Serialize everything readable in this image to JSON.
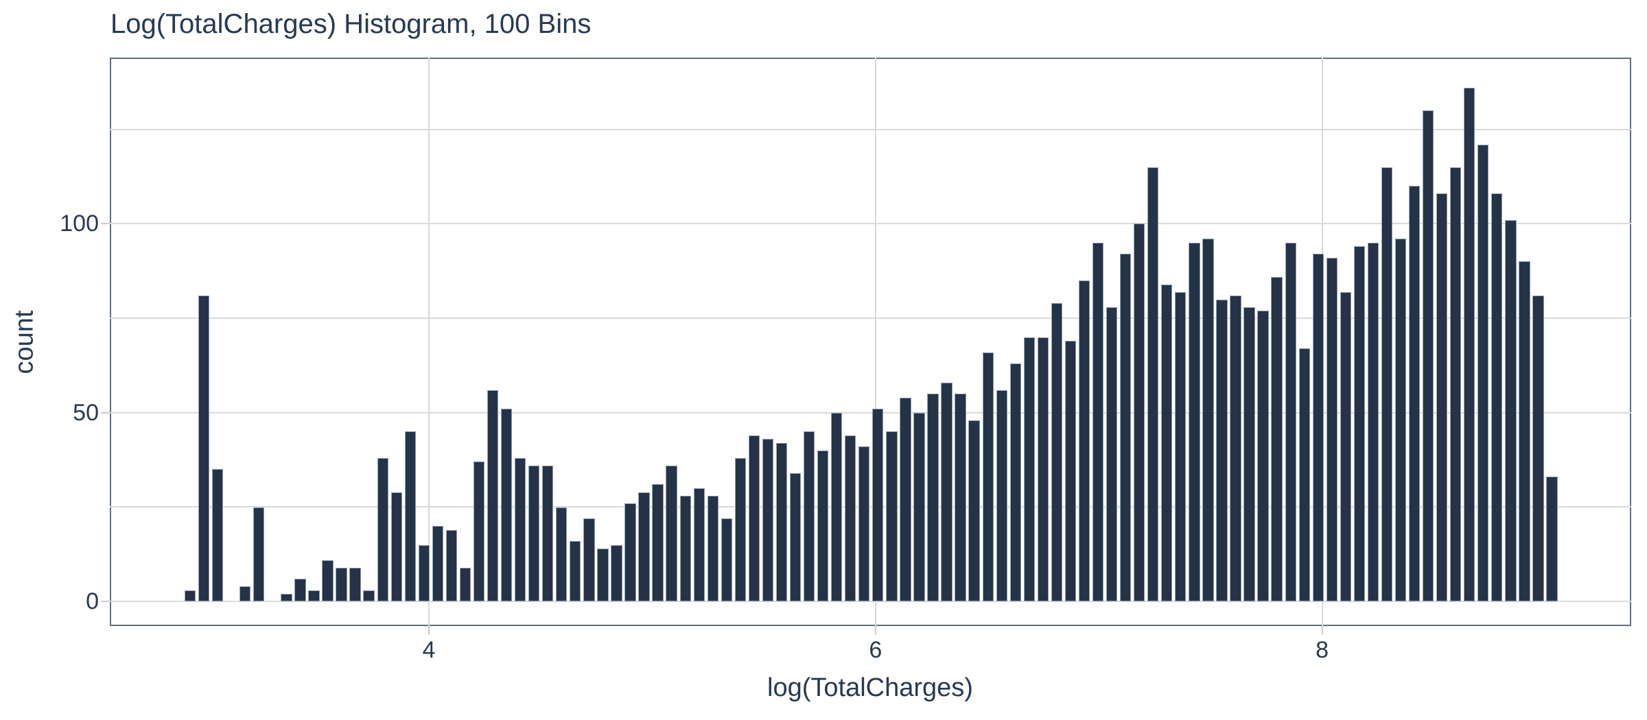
{
  "title": "Log(TotalCharges) Histogram, 100 Bins",
  "chart_data": {
    "type": "bar",
    "subtype": "histogram",
    "title": "Log(TotalCharges) Histogram, 100 Bins",
    "xlabel": "log(TotalCharges)",
    "ylabel": "count",
    "num_bins": 100,
    "bin_start": 2.9,
    "bin_end": 9.06,
    "counts": [
      3,
      81,
      35,
      0,
      4,
      25,
      0,
      2,
      6,
      3,
      11,
      9,
      9,
      3,
      38,
      29,
      45,
      15,
      20,
      19,
      9,
      37,
      56,
      51,
      38,
      36,
      36,
      25,
      16,
      22,
      14,
      15,
      26,
      29,
      31,
      36,
      28,
      30,
      28,
      22,
      38,
      44,
      43,
      42,
      34,
      45,
      40,
      50,
      44,
      41,
      51,
      45,
      54,
      50,
      55,
      58,
      55,
      48,
      66,
      56,
      63,
      70,
      70,
      79,
      69,
      85,
      95,
      78,
      92,
      100,
      115,
      84,
      82,
      95,
      96,
      80,
      81,
      78,
      77,
      86,
      95,
      67,
      92,
      91,
      82,
      94,
      95,
      115,
      96,
      110,
      130,
      108,
      115,
      136,
      121,
      108,
      101,
      90,
      81,
      33
    ],
    "x_ticks": [
      4,
      6,
      8
    ],
    "y_ticks": [
      0,
      50,
      100
    ],
    "y_gridlines": [
      0,
      25,
      50,
      75,
      100,
      125
    ],
    "x_range": [
      2.571,
      9.384
    ],
    "y_range": [
      -6.5,
      144
    ],
    "grid": true,
    "legend": "none",
    "colors": {
      "bar": "#253348",
      "bar_edge": "#93a0b2",
      "text": "#263a52",
      "grid": "#d7d9dc",
      "axis_border": "#5e6e80",
      "tick_mark": "#c8cdd2",
      "background": "#ffffff"
    }
  }
}
